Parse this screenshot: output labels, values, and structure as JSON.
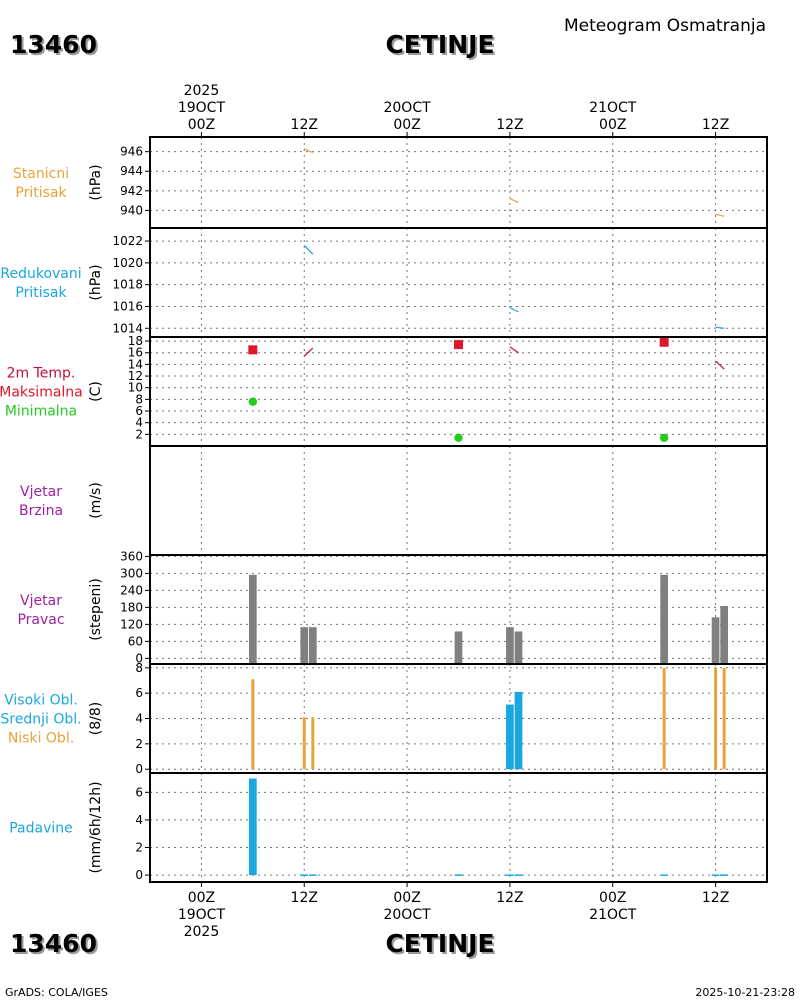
{
  "header": {
    "station_id": "13460",
    "station_name": "CETINJE",
    "chart_title": "Meteogram Osmatranja"
  },
  "footer": {
    "station_id": "13460",
    "station_name": "CETINJE",
    "credit": "GrADS: COLA/IGES",
    "timestamp": "2025-10-21-23:28"
  },
  "colors": {
    "orange": "#e8a33a",
    "cyan": "#1aa6de",
    "red": "#e0162b",
    "green": "#22cc22",
    "purple": "#a020a0",
    "gray": "#808080",
    "crimson": "#c0103a"
  },
  "chart_data": {
    "type": "meteogram",
    "time_axis": {
      "range_hours": [
        -6,
        66
      ],
      "ticks": [
        {
          "hour": 0,
          "top": [
            "2025",
            "19OCT",
            "00Z"
          ],
          "bottom": [
            "00Z",
            "19OCT",
            "2025"
          ]
        },
        {
          "hour": 12,
          "top": [
            "12Z"
          ],
          "bottom": [
            "12Z"
          ]
        },
        {
          "hour": 24,
          "top": [
            "20OCT",
            "00Z"
          ],
          "bottom": [
            "00Z",
            "20OCT"
          ]
        },
        {
          "hour": 36,
          "top": [
            "12Z"
          ],
          "bottom": [
            "12Z"
          ]
        },
        {
          "hour": 48,
          "top": [
            "21OCT",
            "00Z"
          ],
          "bottom": [
            "00Z",
            "21OCT"
          ]
        },
        {
          "hour": 60,
          "top": [
            "12Z"
          ],
          "bottom": [
            "12Z"
          ]
        }
      ]
    },
    "panels": [
      {
        "id": "station-pressure",
        "labels": [
          {
            "text": "Stanicni",
            "color": "#e8a33a"
          },
          {
            "text": "Pritisak",
            "color": "#e8a33a"
          }
        ],
        "unit": "(hPa)",
        "ylim": [
          938.2,
          947.5
        ],
        "yticks": [
          940,
          942,
          944,
          946
        ],
        "series": [
          {
            "type": "line",
            "name": "Stanicni Pritisak",
            "color": "#e8a33a",
            "segments": [
              [
                [
                  12.0,
                  946.3
                ],
                [
                  13.0,
                  945.9
                ]
              ],
              [
                [
                  36.0,
                  941.2
                ],
                [
                  37.0,
                  940.8
                ]
              ],
              [
                [
                  60.0,
                  939.6
                ],
                [
                  61.0,
                  939.4
                ]
              ]
            ]
          }
        ]
      },
      {
        "id": "reduced-pressure",
        "labels": [
          {
            "text": "Redukovani",
            "color": "#1aa6de"
          },
          {
            "text": "Pritisak",
            "color": "#1aa6de"
          }
        ],
        "unit": "(hPa)",
        "ylim": [
          1013.2,
          1023.2
        ],
        "yticks": [
          1014,
          1016,
          1018,
          1020,
          1022
        ],
        "series": [
          {
            "type": "line",
            "name": "Redukovani Pritisak",
            "color": "#1aa6de",
            "segments": [
              [
                [
                  12.0,
                  1021.6
                ],
                [
                  13.0,
                  1020.8
                ]
              ],
              [
                [
                  36.0,
                  1015.9
                ],
                [
                  37.0,
                  1015.5
                ]
              ],
              [
                [
                  60.0,
                  1014.1
                ],
                [
                  61.0,
                  1014.0
                ]
              ]
            ]
          }
        ]
      },
      {
        "id": "temperature",
        "labels": [
          {
            "text": "2m Temp.",
            "color": "#c0103a"
          },
          {
            "text": "Maksimalna",
            "color": "#e0162b"
          },
          {
            "text": "Minimalna",
            "color": "#22cc22"
          }
        ],
        "unit": "(C)",
        "ylim": [
          0,
          18.7
        ],
        "yticks": [
          2,
          4,
          6,
          8,
          10,
          12,
          14,
          16,
          18
        ],
        "series": [
          {
            "type": "line",
            "name": "2m Temp.",
            "color": "#c0103a",
            "segments": [
              [
                [
                  12.0,
                  15.4
                ],
                [
                  13.0,
                  16.8
                ]
              ],
              [
                [
                  36.0,
                  17.0
                ],
                [
                  37.0,
                  16.0
                ]
              ],
              [
                [
                  60.0,
                  14.6
                ],
                [
                  61.0,
                  13.2
                ]
              ]
            ]
          },
          {
            "type": "square",
            "name": "Maksimalna",
            "color": "#e0162b",
            "points": [
              [
                6.0,
                16.5
              ],
              [
                30.0,
                17.4
              ],
              [
                54.0,
                17.8
              ]
            ]
          },
          {
            "type": "circle",
            "name": "Minimalna",
            "color": "#22cc22",
            "points": [
              [
                6.0,
                7.6
              ],
              [
                30.0,
                1.4
              ],
              [
                54.0,
                1.4
              ]
            ]
          }
        ]
      },
      {
        "id": "wind-speed",
        "labels": [
          {
            "text": "Vjetar",
            "color": "#a020a0"
          },
          {
            "text": "Brzina",
            "color": "#a020a0"
          }
        ],
        "unit": "(m/s)",
        "ylim": [
          0,
          10
        ],
        "yticks": [],
        "series": []
      },
      {
        "id": "wind-direction",
        "labels": [
          {
            "text": "Vjetar",
            "color": "#a020a0"
          },
          {
            "text": "Pravac",
            "color": "#a020a0"
          }
        ],
        "unit": "(stepeni)",
        "ylim": [
          -20,
          365
        ],
        "yticks": [
          0,
          60,
          120,
          180,
          240,
          300,
          360
        ],
        "series": [
          {
            "type": "bar",
            "name": "Vjetar Pravac",
            "color": "#808080",
            "base": -20,
            "points": [
              [
                6,
                295
              ],
              [
                12,
                110
              ],
              [
                13,
                110
              ],
              [
                30,
                95
              ],
              [
                36,
                110
              ],
              [
                37,
                95
              ],
              [
                54,
                295
              ],
              [
                60,
                145
              ],
              [
                61,
                185
              ]
            ]
          }
        ]
      },
      {
        "id": "clouds",
        "labels": [
          {
            "text": "Visoki Obl.",
            "color": "#1aa6de"
          },
          {
            "text": "Srednji Obl.",
            "color": "#1aa6de"
          },
          {
            "text": "Niski Obl.",
            "color": "#e8a33a"
          }
        ],
        "unit": "(8/8)",
        "ylim": [
          -0.3,
          8.3
        ],
        "yticks": [
          0,
          2,
          4,
          6,
          8
        ],
        "series": [
          {
            "type": "bar",
            "name": "Srednji Obl.",
            "color": "#1aa6de",
            "base": 0,
            "width_hours": 0.9,
            "points": [
              [
                36,
                5.1
              ],
              [
                37,
                6.1
              ]
            ]
          },
          {
            "type": "bar",
            "name": "Niski Obl.",
            "color": "#e8a33a",
            "base": 0,
            "width_hours": 0.35,
            "points": [
              [
                6,
                7.1
              ],
              [
                12,
                4.1
              ],
              [
                13,
                4.1
              ],
              [
                54,
                8.0
              ],
              [
                60,
                8.0
              ],
              [
                61,
                8.0
              ]
            ]
          }
        ]
      },
      {
        "id": "precipitation",
        "labels": [
          {
            "text": "Padavine",
            "color": "#1aa6de"
          }
        ],
        "unit": "(mm/6h/12h)",
        "ylim": [
          -0.5,
          7.4
        ],
        "yticks": [
          0,
          2,
          4,
          6
        ],
        "series": [
          {
            "type": "bar",
            "name": "Padavine",
            "color": "#1aa6de",
            "base": 0,
            "width_hours": 0.9,
            "points": [
              [
                6,
                7.0
              ],
              [
                12,
                0.05
              ],
              [
                13,
                0.05
              ],
              [
                30,
                0.05
              ],
              [
                36,
                0.05
              ],
              [
                37,
                0.05
              ],
              [
                54,
                0.05
              ],
              [
                60,
                0.05
              ],
              [
                61,
                0.05
              ]
            ]
          }
        ]
      }
    ]
  }
}
